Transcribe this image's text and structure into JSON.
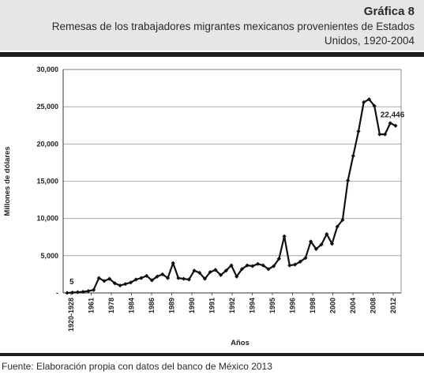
{
  "header": {
    "figure_label": "Gráfica 8",
    "title": "Remesas de los trabajadores migrantes mexicanos provenientes de Estados Unidos, 1920-2004"
  },
  "source": "Fuente: Elaboración propia con datos del banco de México 2013",
  "chart_data": {
    "type": "line",
    "title": "Remesas de los trabajadores migrantes mexicanos provenientes de Estados Unidos, 1920-2004",
    "xlabel": "Años",
    "ylabel": "Millones de dólares",
    "ylim": [
      0,
      30000
    ],
    "y_ticks": [
      {
        "value": 0,
        "label": "-"
      },
      {
        "value": 5000,
        "label": "5,000"
      },
      {
        "value": 10000,
        "label": "10,000"
      },
      {
        "value": 15000,
        "label": "15,000"
      },
      {
        "value": 20000,
        "label": "20,000"
      },
      {
        "value": 25000,
        "label": "25,000"
      },
      {
        "value": 30000,
        "label": "30,000"
      }
    ],
    "x_tick_labels": [
      "1920-1928",
      "1961",
      "1978",
      "1984",
      "1986",
      "1989",
      "1990",
      "1991",
      "1992",
      "1994",
      "1995",
      "1996",
      "1998",
      "2000",
      "2004",
      "2008",
      "2012"
    ],
    "grid": "horizontal",
    "marker": "diamond",
    "series": [
      {
        "values": [
          5,
          50,
          100,
          150,
          250,
          400,
          2000,
          1600,
          1900,
          1300,
          1000,
          1200,
          1400,
          1800,
          2000,
          2300,
          1700,
          2200,
          2500,
          2000,
          4000,
          2000,
          1900,
          1800,
          3000,
          2700,
          1900,
          2800,
          3100,
          2400,
          3000,
          3700,
          2200,
          3200,
          3700,
          3600,
          3900,
          3700,
          3200,
          3600,
          4600,
          7600,
          3700,
          3800,
          4200,
          4700,
          6900,
          5900,
          6500,
          7900,
          6600,
          8900,
          9800,
          15100,
          18400,
          21700,
          25600,
          26000,
          25100,
          21300,
          21300,
          22800,
          22446
        ]
      }
    ],
    "annotations": [
      {
        "label": "5",
        "value": 5,
        "point_index": 0
      },
      {
        "label": "22,446",
        "value": 22446,
        "point_index": 62
      }
    ]
  }
}
